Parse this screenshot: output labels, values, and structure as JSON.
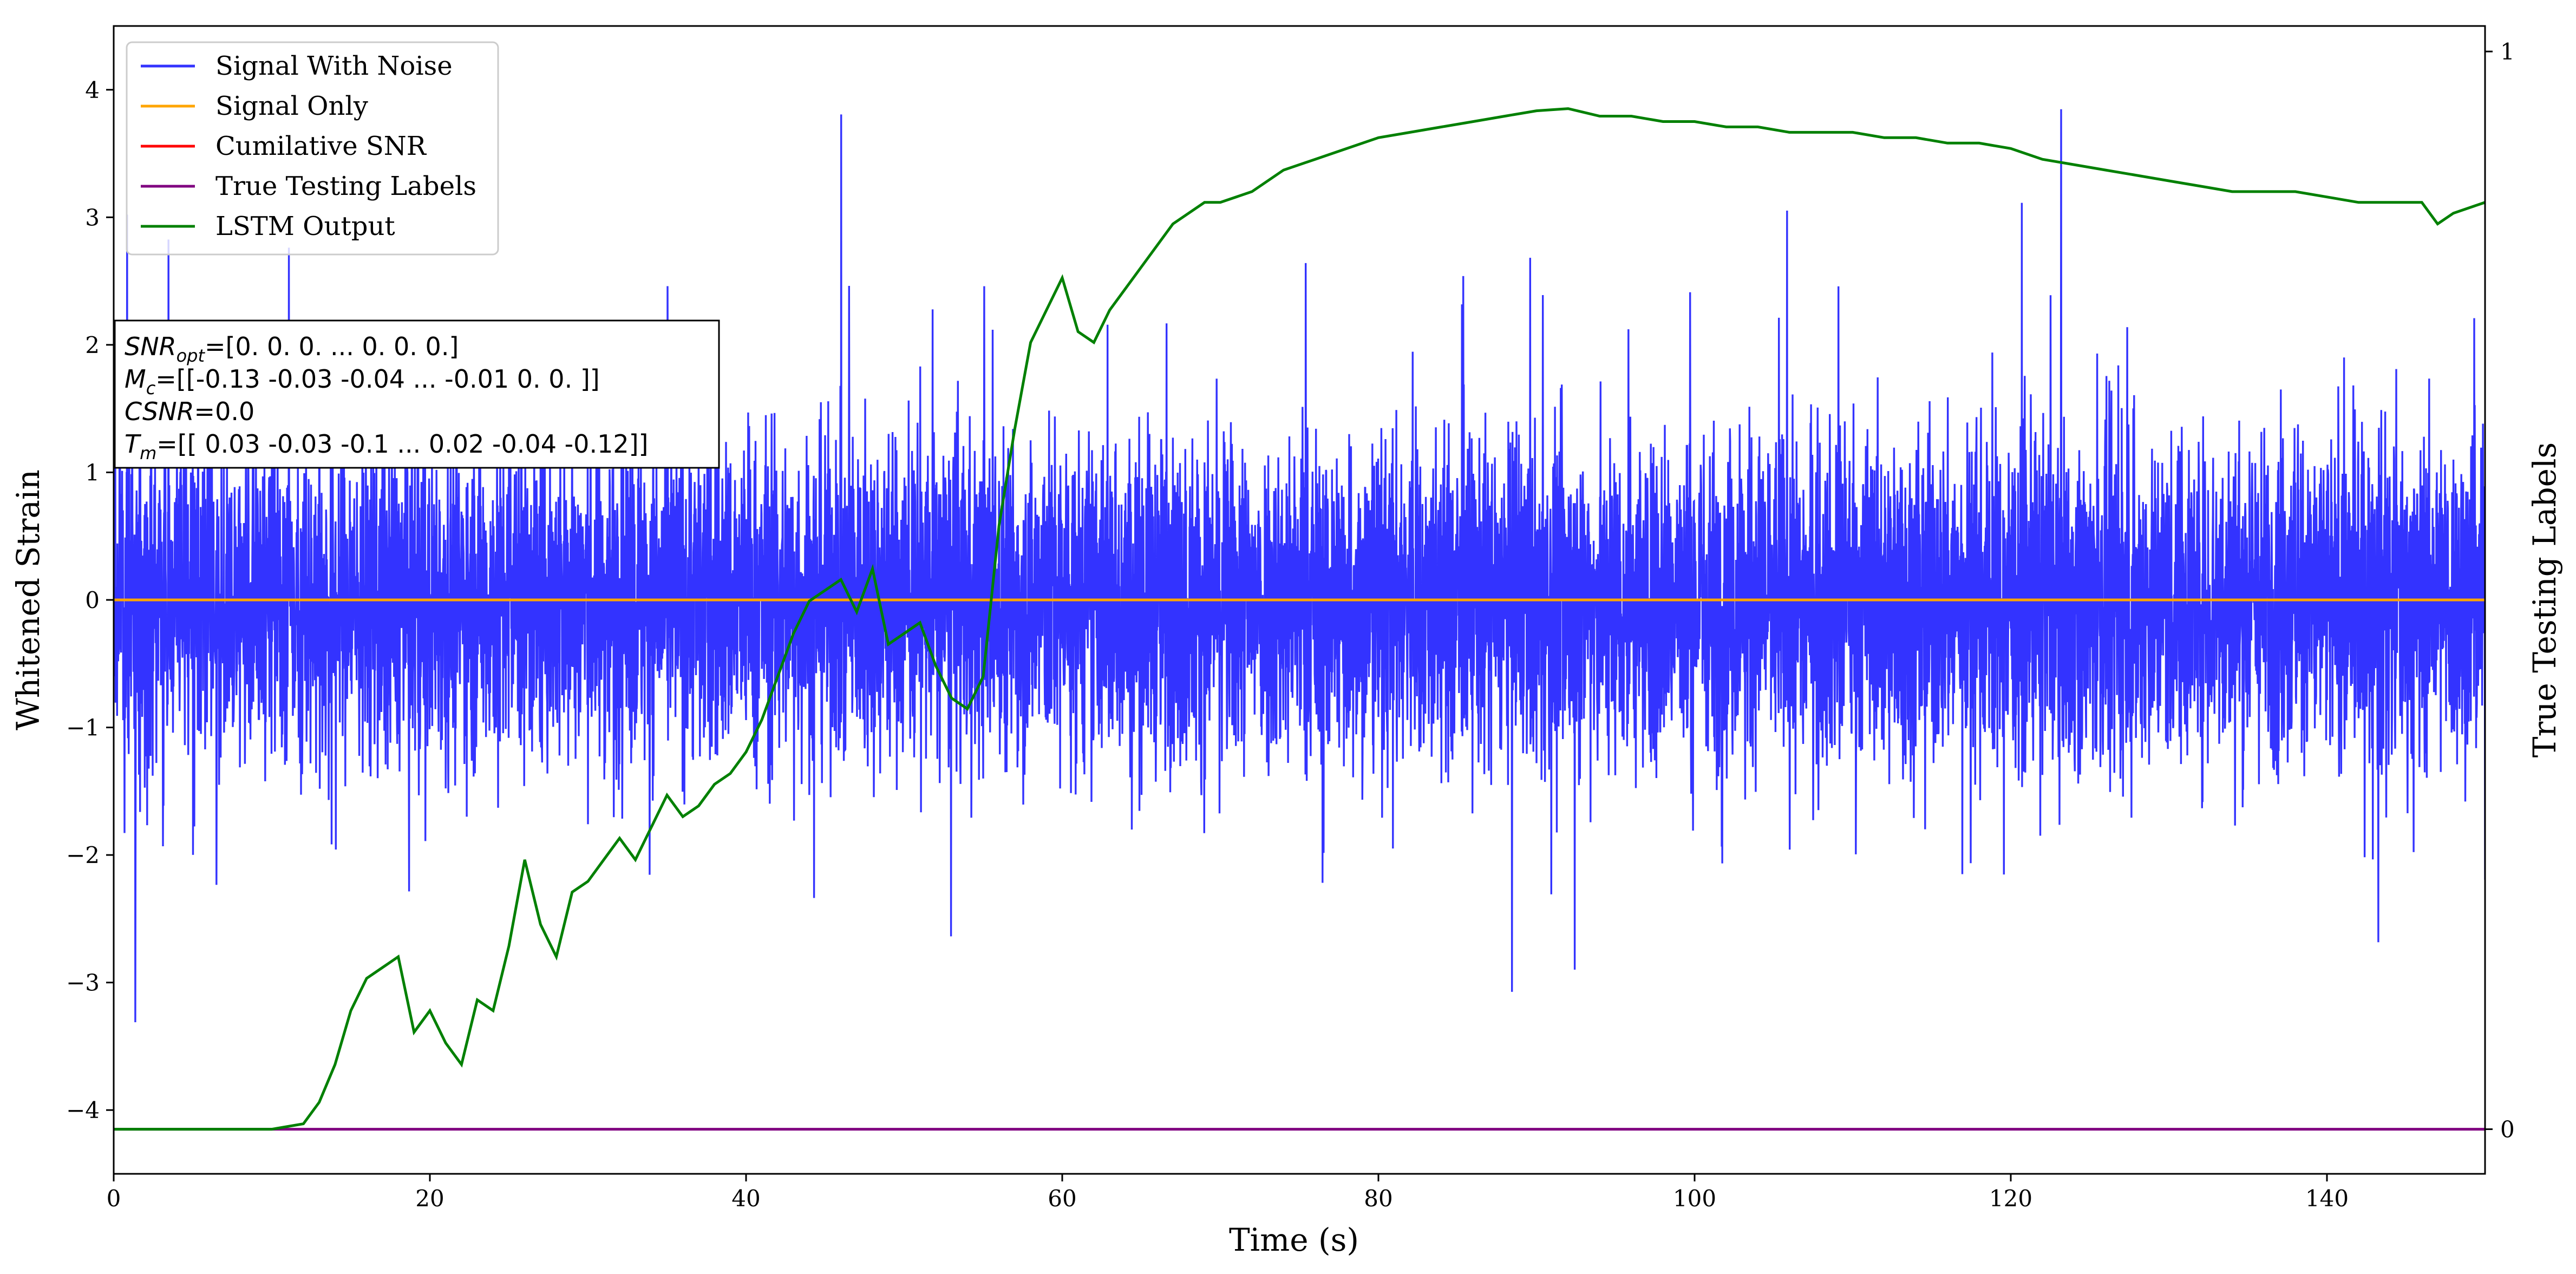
{
  "chart_data": {
    "type": "line",
    "xlabel": "Time (s)",
    "ylabel": "Whitened Strain",
    "ylabel_right": "True Testing Labels",
    "xlim": [
      0,
      150
    ],
    "ylim": [
      -4.5,
      4.5
    ],
    "ylim_right": [
      0,
      1
    ],
    "x_ticks": [
      0,
      20,
      40,
      60,
      80,
      100,
      120,
      140
    ],
    "y_ticks": [
      -4,
      -3,
      -2,
      -1,
      0,
      1,
      2,
      3,
      4
    ],
    "y_ticks_right": [
      0,
      1
    ],
    "grid": false,
    "legend_position": "top-left",
    "legend": [
      {
        "name": "Signal With Noise",
        "color": "#3333ff"
      },
      {
        "name": "Signal Only",
        "color": "#ffa500"
      },
      {
        "name": "Cumilative SNR",
        "color": "#ff0000"
      },
      {
        "name": "True Testing Labels",
        "color": "#800080"
      },
      {
        "name": "LSTM Output",
        "color": "#008000"
      }
    ],
    "annotation": {
      "lines": [
        {
          "var": "SNR",
          "sub": "opt",
          "text": "=[0. 0. 0. ... 0. 0. 0.]"
        },
        {
          "var": "M",
          "sub": "c",
          "text": "=[[-0.13 -0.03 -0.04 ... -0.01  0.    0.  ]]"
        },
        {
          "var": "CSNR",
          "sub": "",
          "text": "=0.0"
        },
        {
          "var": "T",
          "sub": "m",
          "text": "=[[ 0.03 -0.03 -0.1  ...  0.02 -0.04 -0.12]]"
        }
      ]
    },
    "series": [
      {
        "name": "Signal With Noise",
        "axis": "left",
        "style": "noise",
        "x_range": [
          0,
          150
        ],
        "typical_range": [
          -1.4,
          1.6
        ],
        "extreme_range": [
          -3.85,
          4.3
        ]
      },
      {
        "name": "Signal Only",
        "axis": "left",
        "x": [
          0,
          150
        ],
        "y": [
          0,
          0
        ]
      },
      {
        "name": "True Testing Labels",
        "axis": "right",
        "x": [
          0,
          150
        ],
        "y": [
          0,
          0
        ]
      },
      {
        "name": "LSTM Output",
        "axis": "right",
        "x": [
          0,
          5,
          10,
          12,
          13,
          14,
          15,
          16,
          17,
          18,
          19,
          20,
          21,
          22,
          23,
          24,
          25,
          26,
          27,
          28,
          29,
          30,
          31,
          32,
          33,
          34,
          35,
          36,
          37,
          38,
          39,
          40,
          41,
          42,
          43,
          44,
          45,
          46,
          47,
          48,
          49,
          50,
          51,
          52,
          53,
          54,
          55,
          56,
          57,
          58,
          59,
          60,
          61,
          62,
          63,
          64,
          65,
          66,
          67,
          68,
          69,
          70,
          72,
          74,
          76,
          78,
          80,
          82,
          84,
          86,
          88,
          90,
          92,
          94,
          96,
          98,
          100,
          102,
          104,
          106,
          108,
          110,
          112,
          114,
          116,
          118,
          120,
          122,
          124,
          126,
          128,
          130,
          132,
          134,
          136,
          138,
          140,
          142,
          144,
          146,
          147,
          148,
          149,
          150
        ],
        "y": [
          0.0,
          0.0,
          0.0,
          0.005,
          0.025,
          0.06,
          0.11,
          0.14,
          0.15,
          0.16,
          0.09,
          0.11,
          0.08,
          0.06,
          0.12,
          0.11,
          0.17,
          0.25,
          0.19,
          0.16,
          0.22,
          0.23,
          0.25,
          0.27,
          0.25,
          0.28,
          0.31,
          0.29,
          0.3,
          0.32,
          0.33,
          0.35,
          0.38,
          0.42,
          0.46,
          0.49,
          0.5,
          0.51,
          0.48,
          0.52,
          0.45,
          0.46,
          0.47,
          0.43,
          0.4,
          0.39,
          0.42,
          0.56,
          0.65,
          0.73,
          0.76,
          0.79,
          0.74,
          0.73,
          0.76,
          0.78,
          0.8,
          0.82,
          0.84,
          0.85,
          0.86,
          0.86,
          0.87,
          0.89,
          0.9,
          0.91,
          0.92,
          0.925,
          0.93,
          0.935,
          0.94,
          0.945,
          0.947,
          0.94,
          0.94,
          0.935,
          0.935,
          0.93,
          0.93,
          0.925,
          0.925,
          0.925,
          0.92,
          0.92,
          0.915,
          0.915,
          0.91,
          0.9,
          0.895,
          0.89,
          0.885,
          0.88,
          0.875,
          0.87,
          0.87,
          0.87,
          0.865,
          0.86,
          0.86,
          0.86,
          0.84,
          0.85,
          0.855,
          0.86
        ]
      }
    ]
  }
}
